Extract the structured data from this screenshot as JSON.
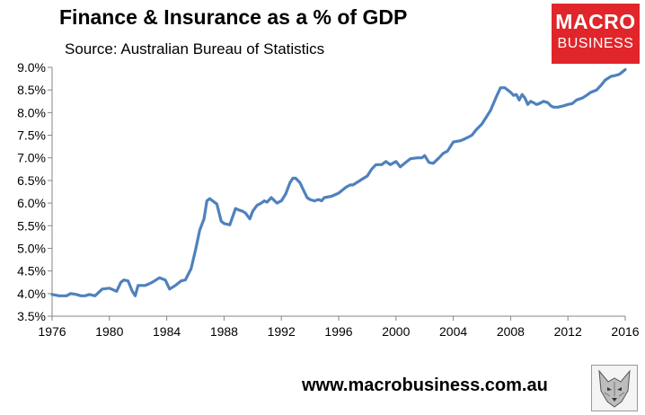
{
  "header": {
    "title": "Finance & Insurance as a % of GDP",
    "subtitle": "Source: Australian Bureau of Statistics"
  },
  "logo": {
    "line1": "MACRO",
    "line2": "BUSINESS",
    "color": "#e0262b"
  },
  "footer": {
    "url": "www.macrobusiness.com.au",
    "wolf_icon": "wolf-head-icon"
  },
  "chart_data": {
    "type": "line",
    "title": "Finance & Insurance as a % of GDP",
    "xlabel": "",
    "ylabel": "",
    "xlim": [
      1976,
      2016
    ],
    "ylim": [
      3.5,
      9.0
    ],
    "x_ticks": [
      1976,
      1980,
      1984,
      1988,
      1992,
      1996,
      2000,
      2004,
      2008,
      2012,
      2016
    ],
    "y_ticks": [
      3.5,
      4.0,
      4.5,
      5.0,
      5.5,
      6.0,
      6.5,
      7.0,
      7.5,
      8.0,
      8.5,
      9.0
    ],
    "y_tick_labels": [
      "3.5%",
      "4.0%",
      "4.5%",
      "5.0%",
      "5.5%",
      "6.0%",
      "6.5%",
      "7.0%",
      "7.5%",
      "8.0%",
      "8.5%",
      "9.0%"
    ],
    "grid": false,
    "line_color": "#4f81bd",
    "series": [
      {
        "name": "Finance & Insurance % of GDP",
        "x": [
          1976.0,
          1976.5,
          1977.0,
          1977.3,
          1977.7,
          1978.0,
          1978.3,
          1978.6,
          1979.0,
          1979.5,
          1980.0,
          1980.5,
          1980.8,
          1981.0,
          1981.3,
          1981.6,
          1981.8,
          1982.0,
          1982.5,
          1982.8,
          1983.0,
          1983.5,
          1983.9,
          1984.2,
          1984.6,
          1985.0,
          1985.3,
          1985.7,
          1986.0,
          1986.3,
          1986.6,
          1986.8,
          1987.0,
          1987.2,
          1987.5,
          1987.8,
          1988.0,
          1988.4,
          1988.8,
          1989.0,
          1989.3,
          1989.5,
          1989.8,
          1990.0,
          1990.3,
          1990.6,
          1990.8,
          1991.0,
          1991.3,
          1991.7,
          1992.0,
          1992.3,
          1992.6,
          1992.8,
          1993.0,
          1993.3,
          1993.6,
          1993.8,
          1994.0,
          1994.3,
          1994.6,
          1994.8,
          1995.0,
          1995.5,
          1996.0,
          1996.5,
          1996.8,
          1997.0,
          1997.5,
          1998.0,
          1998.3,
          1998.6,
          1999.0,
          1999.3,
          1999.6,
          2000.0,
          2000.3,
          2000.6,
          2001.0,
          2001.5,
          2001.8,
          2002.0,
          2002.3,
          2002.6,
          2003.0,
          2003.3,
          2003.6,
          2004.0,
          2004.5,
          2004.8,
          2005.0,
          2005.3,
          2005.6,
          2006.0,
          2006.3,
          2006.6,
          2006.8,
          2007.0,
          2007.3,
          2007.6,
          2008.0,
          2008.2,
          2008.4,
          2008.6,
          2008.8,
          2009.0,
          2009.2,
          2009.4,
          2009.6,
          2009.8,
          2010.0,
          2010.3,
          2010.6,
          2010.8,
          2011.0,
          2011.3,
          2011.7,
          2012.0,
          2012.3,
          2012.6,
          2013.0,
          2013.3,
          2013.6,
          2014.0,
          2014.3,
          2014.6,
          2015.0,
          2015.3,
          2015.6,
          2016.0
        ],
        "values": [
          3.98,
          3.95,
          3.95,
          4.0,
          3.98,
          3.95,
          3.95,
          3.98,
          3.95,
          4.1,
          4.12,
          4.05,
          4.25,
          4.3,
          4.28,
          4.05,
          3.95,
          4.18,
          4.18,
          4.22,
          4.25,
          4.35,
          4.3,
          4.1,
          4.18,
          4.28,
          4.3,
          4.55,
          4.95,
          5.4,
          5.65,
          6.05,
          6.1,
          6.05,
          5.98,
          5.6,
          5.55,
          5.52,
          5.88,
          5.85,
          5.82,
          5.78,
          5.65,
          5.82,
          5.95,
          6.0,
          6.05,
          6.02,
          6.12,
          6.0,
          6.05,
          6.2,
          6.45,
          6.55,
          6.55,
          6.45,
          6.25,
          6.12,
          6.08,
          6.05,
          6.08,
          6.05,
          6.12,
          6.15,
          6.22,
          6.35,
          6.4,
          6.4,
          6.5,
          6.6,
          6.75,
          6.85,
          6.85,
          6.92,
          6.85,
          6.92,
          6.8,
          6.88,
          6.98,
          7.0,
          7.0,
          7.05,
          6.9,
          6.88,
          7.0,
          7.1,
          7.15,
          7.35,
          7.38,
          7.42,
          7.45,
          7.5,
          7.62,
          7.75,
          7.9,
          8.05,
          8.2,
          8.35,
          8.55,
          8.55,
          8.45,
          8.38,
          8.4,
          8.28,
          8.4,
          8.32,
          8.18,
          8.25,
          8.22,
          8.18,
          8.2,
          8.25,
          8.22,
          8.15,
          8.12,
          8.12,
          8.15,
          8.18,
          8.2,
          8.28,
          8.32,
          8.38,
          8.45,
          8.5,
          8.6,
          8.72,
          8.8,
          8.82,
          8.85,
          8.95
        ]
      }
    ]
  }
}
